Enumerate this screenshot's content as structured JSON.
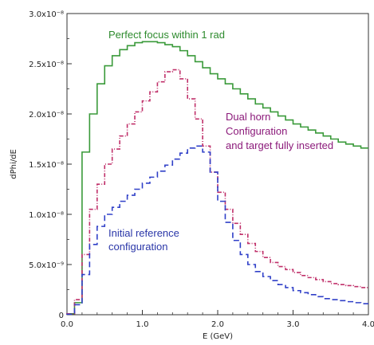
{
  "chart_data": {
    "type": "line",
    "xlabel": "E (GeV)",
    "ylabel": "dPhi/dE",
    "xlim": [
      0,
      4.0
    ],
    "ylim": [
      0,
      3e-08
    ],
    "x_ticks": [
      "0.0",
      "1.0",
      "2.0",
      "3.0",
      "4.0"
    ],
    "y_ticks": [
      "0",
      "5.0x10⁻⁹",
      "1.0x10⁻⁸",
      "1.5x10⁻⁸",
      "2.0x10⁻⁸",
      "2.5x10⁻⁸",
      "3.0x10⁻⁸"
    ],
    "x_tick_values": [
      0,
      1,
      2,
      3,
      4
    ],
    "y_tick_values": [
      0,
      5e-09,
      1e-08,
      1.5e-08,
      2e-08,
      2.5e-08,
      3e-08
    ],
    "grid": false,
    "bin_edges": [
      0.0,
      0.1,
      0.2,
      0.3,
      0.4,
      0.5,
      0.6,
      0.7,
      0.8,
      0.9,
      1.0,
      1.1,
      1.2,
      1.3,
      1.4,
      1.5,
      1.6,
      1.7,
      1.8,
      1.9,
      2.0,
      2.1,
      2.2,
      2.3,
      2.4,
      2.5,
      2.6,
      2.7,
      2.8,
      2.9,
      3.0,
      3.1,
      3.2,
      3.3,
      3.4,
      3.5,
      3.6,
      3.7,
      3.8,
      3.9,
      4.0
    ],
    "series": [
      {
        "name": "Perfect focus within 1 rad",
        "color": "#3a9a3a",
        "style": "solid",
        "values": [
          1e-10,
          1.2e-09,
          1.62e-08,
          2e-08,
          2.3e-08,
          2.48e-08,
          2.58e-08,
          2.64e-08,
          2.68e-08,
          2.71e-08,
          2.72e-08,
          2.72e-08,
          2.71e-08,
          2.69e-08,
          2.67e-08,
          2.63e-08,
          2.58e-08,
          2.52e-08,
          2.46e-08,
          2.4e-08,
          2.35e-08,
          2.3e-08,
          2.25e-08,
          2.2e-08,
          2.15e-08,
          2.1e-08,
          2.06e-08,
          2.02e-08,
          1.98e-08,
          1.94e-08,
          1.9e-08,
          1.87e-08,
          1.84e-08,
          1.81e-08,
          1.78e-08,
          1.75e-08,
          1.72e-08,
          1.7e-08,
          1.68e-08,
          1.66e-08
        ]
      },
      {
        "name": "Dual horn Configuration and target fully inserted",
        "color": "#c0306a",
        "style": "dash-dot",
        "values": [
          1e-10,
          1.5e-09,
          6e-09,
          1.05e-08,
          1.3e-08,
          1.5e-08,
          1.65e-08,
          1.78e-08,
          1.9e-08,
          2.02e-08,
          2.13e-08,
          2.22e-08,
          2.32e-08,
          2.42e-08,
          2.44e-08,
          2.35e-08,
          2.15e-08,
          1.95e-08,
          1.68e-08,
          1.42e-08,
          1.22e-08,
          1.05e-08,
          9.1e-09,
          8e-09,
          7.1e-09,
          6.3e-09,
          5.7e-09,
          5.2e-09,
          4.8e-09,
          4.5e-09,
          4.2e-09,
          3.9e-09,
          3.7e-09,
          3.5e-09,
          3.3e-09,
          3.1e-09,
          3e-09,
          2.9e-09,
          2.8e-09,
          2.7e-09
        ]
      },
      {
        "name": "Initial reference configuration",
        "color": "#3040c8",
        "style": "dashed",
        "values": [
          5e-11,
          1e-09,
          4e-09,
          7e-09,
          8.8e-09,
          1e-08,
          1.07e-08,
          1.13e-08,
          1.19e-08,
          1.25e-08,
          1.31e-08,
          1.37e-08,
          1.43e-08,
          1.49e-08,
          1.55e-08,
          1.61e-08,
          1.66e-08,
          1.68e-08,
          1.62e-08,
          1.42e-08,
          1.13e-08,
          9.2e-09,
          7.4e-09,
          6e-09,
          5e-09,
          4.3e-09,
          3.8e-09,
          3.4e-09,
          3e-09,
          2.7e-09,
          2.4e-09,
          2.2e-09,
          2e-09,
          1.8e-09,
          1.6e-09,
          1.5e-09,
          1.4e-09,
          1.3e-09,
          1.2e-09,
          1.1e-09
        ]
      }
    ],
    "annotations": [
      {
        "lines": [
          "Perfect focus within 1 rad"
        ],
        "color": "#2e8b2e"
      },
      {
        "lines": [
          "Dual horn",
          "Configuration",
          "and target fully inserted"
        ],
        "color": "#8b1a7a"
      },
      {
        "lines": [
          "Initial reference",
          "configuration"
        ],
        "color": "#2a36a8"
      }
    ]
  }
}
